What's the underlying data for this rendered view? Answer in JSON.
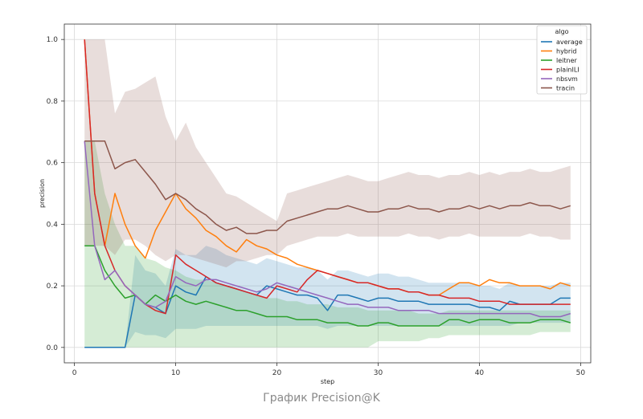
{
  "caption": "График Precision@K",
  "chart_data": {
    "type": "line",
    "xlabel": "step",
    "ylabel": "precision",
    "xlim": [
      -1,
      51
    ],
    "ylim": [
      -0.05,
      1.05
    ],
    "xticks": [
      0,
      10,
      20,
      30,
      40,
      50
    ],
    "yticks": [
      0.0,
      0.2,
      0.4,
      0.6,
      0.8,
      1.0
    ],
    "grid": true,
    "legend": {
      "title": "algo",
      "placement": "top-right"
    },
    "series": [
      {
        "name": "average",
        "color": "#1f77b4",
        "x": [
          1,
          2,
          3,
          4,
          5,
          6,
          7,
          8,
          9,
          10,
          11,
          12,
          13,
          14,
          15,
          16,
          17,
          18,
          19,
          20,
          21,
          22,
          23,
          24,
          25,
          26,
          27,
          28,
          29,
          30,
          31,
          32,
          33,
          34,
          35,
          36,
          37,
          38,
          39,
          40,
          41,
          42,
          43,
          44,
          45,
          46,
          47,
          48,
          49
        ],
        "y": [
          0,
          0,
          0,
          0,
          0,
          0.17,
          0.14,
          0.13,
          0.11,
          0.2,
          0.18,
          0.17,
          0.23,
          0.21,
          0.2,
          0.19,
          0.18,
          0.17,
          0.2,
          0.19,
          0.18,
          0.17,
          0.17,
          0.16,
          0.12,
          0.17,
          0.17,
          0.16,
          0.15,
          0.16,
          0.16,
          0.15,
          0.15,
          0.15,
          0.14,
          0.14,
          0.14,
          0.14,
          0.14,
          0.13,
          0.13,
          0.12,
          0.15,
          0.14,
          0.14,
          0.14,
          0.14,
          0.16,
          0.16
        ],
        "band_low": [
          0,
          0,
          0,
          0,
          0,
          0.05,
          0.04,
          0.04,
          0.03,
          0.06,
          0.06,
          0.06,
          0.07,
          0.07,
          0.07,
          0.07,
          0.07,
          0.07,
          0.07,
          0.07,
          0.07,
          0.07,
          0.07,
          0.07,
          0.06,
          0.07,
          0.07,
          0.07,
          0.07,
          0.07,
          0.07,
          0.07,
          0.07,
          0.07,
          0.07,
          0.07,
          0.07,
          0.07,
          0.07,
          0.07,
          0.07,
          0.07,
          0.07,
          0.08,
          0.08,
          0.08,
          0.08,
          0.08,
          0.08
        ],
        "band_high": [
          0,
          0,
          0,
          0,
          0,
          0.3,
          0.25,
          0.24,
          0.2,
          0.32,
          0.3,
          0.3,
          0.33,
          0.32,
          0.3,
          0.29,
          0.28,
          0.27,
          0.29,
          0.28,
          0.27,
          0.26,
          0.26,
          0.25,
          0.22,
          0.25,
          0.25,
          0.24,
          0.23,
          0.24,
          0.24,
          0.23,
          0.23,
          0.22,
          0.21,
          0.21,
          0.21,
          0.21,
          0.21,
          0.2,
          0.2,
          0.19,
          0.21,
          0.2,
          0.2,
          0.2,
          0.2,
          0.21,
          0.21
        ]
      },
      {
        "name": "hybrid",
        "color": "#ff7f0e",
        "x": [
          1,
          2,
          3,
          4,
          5,
          6,
          7,
          8,
          9,
          10,
          11,
          12,
          13,
          14,
          15,
          16,
          17,
          18,
          19,
          20,
          21,
          22,
          23,
          24,
          25,
          26,
          27,
          28,
          29,
          30,
          31,
          32,
          33,
          34,
          35,
          36,
          37,
          38,
          39,
          40,
          41,
          42,
          43,
          44,
          45,
          46,
          47,
          48,
          49
        ],
        "y": [
          1.0,
          0.5,
          0.33,
          0.5,
          0.4,
          0.33,
          0.29,
          0.38,
          0.44,
          0.5,
          0.45,
          0.42,
          0.38,
          0.36,
          0.33,
          0.31,
          0.35,
          0.33,
          0.32,
          0.3,
          0.29,
          0.27,
          0.26,
          0.25,
          0.24,
          0.23,
          0.22,
          0.21,
          0.21,
          0.2,
          0.19,
          0.19,
          0.18,
          0.18,
          0.17,
          0.17,
          0.19,
          0.21,
          0.21,
          0.2,
          0.22,
          0.21,
          0.21,
          0.2,
          0.2,
          0.2,
          0.19,
          0.21,
          0.2
        ],
        "band_low": [],
        "band_high": []
      },
      {
        "name": "leitner",
        "color": "#2ca02c",
        "x": [
          1,
          2,
          3,
          4,
          5,
          6,
          7,
          8,
          9,
          10,
          11,
          12,
          13,
          14,
          15,
          16,
          17,
          18,
          19,
          20,
          21,
          22,
          23,
          24,
          25,
          26,
          27,
          28,
          29,
          30,
          31,
          32,
          33,
          34,
          35,
          36,
          37,
          38,
          39,
          40,
          41,
          42,
          43,
          44,
          45,
          46,
          47,
          48,
          49
        ],
        "y": [
          0.33,
          0.33,
          0.25,
          0.2,
          0.16,
          0.17,
          0.14,
          0.17,
          0.15,
          0.17,
          0.15,
          0.14,
          0.15,
          0.14,
          0.13,
          0.12,
          0.12,
          0.11,
          0.1,
          0.1,
          0.1,
          0.09,
          0.09,
          0.09,
          0.08,
          0.08,
          0.08,
          0.07,
          0.07,
          0.08,
          0.08,
          0.07,
          0.07,
          0.07,
          0.07,
          0.07,
          0.09,
          0.09,
          0.08,
          0.09,
          0.09,
          0.09,
          0.08,
          0.08,
          0.08,
          0.09,
          0.09,
          0.09,
          0.08
        ],
        "band_low": [
          0,
          0,
          0,
          0,
          0,
          0,
          0,
          0,
          0,
          0,
          0,
          0,
          0,
          0,
          0,
          0,
          0,
          0,
          0,
          0,
          0,
          0,
          0,
          0,
          0,
          0,
          0,
          0,
          0,
          0.02,
          0.02,
          0.02,
          0.02,
          0.02,
          0.03,
          0.03,
          0.04,
          0.04,
          0.04,
          0.04,
          0.04,
          0.04,
          0.04,
          0.04,
          0.04,
          0.05,
          0.05,
          0.05,
          0.05
        ],
        "band_high": [
          0.67,
          0.67,
          0.5,
          0.4,
          0.33,
          0.33,
          0.29,
          0.28,
          0.26,
          0.25,
          0.23,
          0.22,
          0.22,
          0.21,
          0.2,
          0.19,
          0.18,
          0.17,
          0.16,
          0.16,
          0.15,
          0.15,
          0.14,
          0.14,
          0.14,
          0.13,
          0.13,
          0.13,
          0.12,
          0.12,
          0.12,
          0.12,
          0.12,
          0.11,
          0.11,
          0.11,
          0.12,
          0.12,
          0.12,
          0.12,
          0.12,
          0.12,
          0.12,
          0.12,
          0.12,
          0.12,
          0.12,
          0.12,
          0.12
        ]
      },
      {
        "name": "plainILI",
        "color": "#d62728",
        "x": [
          1,
          2,
          3,
          4,
          5,
          6,
          7,
          8,
          9,
          10,
          11,
          12,
          13,
          14,
          15,
          16,
          17,
          18,
          19,
          20,
          21,
          22,
          23,
          24,
          25,
          26,
          27,
          28,
          29,
          30,
          31,
          32,
          33,
          34,
          35,
          36,
          37,
          38,
          39,
          40,
          41,
          42,
          43,
          44,
          45,
          46,
          47,
          48,
          49
        ],
        "y": [
          1.0,
          0.5,
          0.33,
          0.25,
          0.2,
          0.17,
          0.14,
          0.12,
          0.11,
          0.3,
          0.27,
          0.25,
          0.23,
          0.21,
          0.2,
          0.19,
          0.18,
          0.17,
          0.16,
          0.2,
          0.19,
          0.18,
          0.22,
          0.25,
          0.24,
          0.23,
          0.22,
          0.21,
          0.21,
          0.2,
          0.19,
          0.19,
          0.18,
          0.18,
          0.17,
          0.17,
          0.16,
          0.16,
          0.16,
          0.15,
          0.15,
          0.15,
          0.14,
          0.14,
          0.14,
          0.14,
          0.14,
          0.14,
          0.14
        ],
        "band_low": [],
        "band_high": []
      },
      {
        "name": "nbsvm",
        "color": "#9467bd",
        "x": [
          1,
          2,
          3,
          4,
          5,
          6,
          7,
          8,
          9,
          10,
          11,
          12,
          13,
          14,
          15,
          16,
          17,
          18,
          19,
          20,
          21,
          22,
          23,
          24,
          25,
          26,
          27,
          28,
          29,
          30,
          31,
          32,
          33,
          34,
          35,
          36,
          37,
          38,
          39,
          40,
          41,
          42,
          43,
          44,
          45,
          46,
          47,
          48,
          49
        ],
        "y": [
          0.67,
          0.33,
          0.22,
          0.25,
          0.2,
          0.17,
          0.14,
          0.13,
          0.15,
          0.23,
          0.21,
          0.2,
          0.22,
          0.22,
          0.21,
          0.2,
          0.19,
          0.18,
          0.19,
          0.21,
          0.2,
          0.19,
          0.18,
          0.17,
          0.16,
          0.15,
          0.14,
          0.14,
          0.13,
          0.13,
          0.13,
          0.12,
          0.12,
          0.12,
          0.12,
          0.11,
          0.11,
          0.11,
          0.11,
          0.11,
          0.11,
          0.11,
          0.11,
          0.11,
          0.11,
          0.1,
          0.1,
          0.1,
          0.11
        ],
        "band_low": [],
        "band_high": []
      },
      {
        "name": "tracin",
        "color": "#8c564b",
        "x": [
          1,
          2,
          3,
          4,
          5,
          6,
          7,
          8,
          9,
          10,
          11,
          12,
          13,
          14,
          15,
          16,
          17,
          18,
          19,
          20,
          21,
          22,
          23,
          24,
          25,
          26,
          27,
          28,
          29,
          30,
          31,
          32,
          33,
          34,
          35,
          36,
          37,
          38,
          39,
          40,
          41,
          42,
          43,
          44,
          45,
          46,
          47,
          48,
          49
        ],
        "y": [
          0.67,
          0.67,
          0.67,
          0.58,
          0.6,
          0.61,
          0.57,
          0.53,
          0.48,
          0.5,
          0.48,
          0.45,
          0.43,
          0.4,
          0.38,
          0.39,
          0.37,
          0.37,
          0.38,
          0.38,
          0.41,
          0.42,
          0.43,
          0.44,
          0.45,
          0.45,
          0.46,
          0.45,
          0.44,
          0.44,
          0.45,
          0.45,
          0.46,
          0.45,
          0.45,
          0.44,
          0.45,
          0.45,
          0.46,
          0.45,
          0.46,
          0.45,
          0.46,
          0.46,
          0.47,
          0.46,
          0.46,
          0.45,
          0.46
        ],
        "band_low": [
          0.33,
          0.33,
          0.33,
          0.3,
          0.35,
          0.35,
          0.33,
          0.3,
          0.28,
          0.3,
          0.3,
          0.29,
          0.28,
          0.27,
          0.26,
          0.28,
          0.28,
          0.29,
          0.3,
          0.3,
          0.33,
          0.34,
          0.35,
          0.36,
          0.36,
          0.36,
          0.37,
          0.36,
          0.36,
          0.36,
          0.36,
          0.36,
          0.37,
          0.36,
          0.36,
          0.35,
          0.36,
          0.36,
          0.37,
          0.36,
          0.36,
          0.36,
          0.36,
          0.36,
          0.37,
          0.36,
          0.36,
          0.35,
          0.35
        ],
        "band_high": [
          1.0,
          1.0,
          1.0,
          0.76,
          0.83,
          0.84,
          0.86,
          0.88,
          0.75,
          0.67,
          0.73,
          0.65,
          0.6,
          0.55,
          0.5,
          0.49,
          0.47,
          0.45,
          0.43,
          0.41,
          0.5,
          0.51,
          0.52,
          0.53,
          0.54,
          0.55,
          0.56,
          0.55,
          0.54,
          0.54,
          0.55,
          0.56,
          0.57,
          0.56,
          0.56,
          0.55,
          0.56,
          0.56,
          0.57,
          0.56,
          0.57,
          0.56,
          0.57,
          0.57,
          0.58,
          0.57,
          0.57,
          0.58,
          0.59
        ]
      }
    ]
  }
}
